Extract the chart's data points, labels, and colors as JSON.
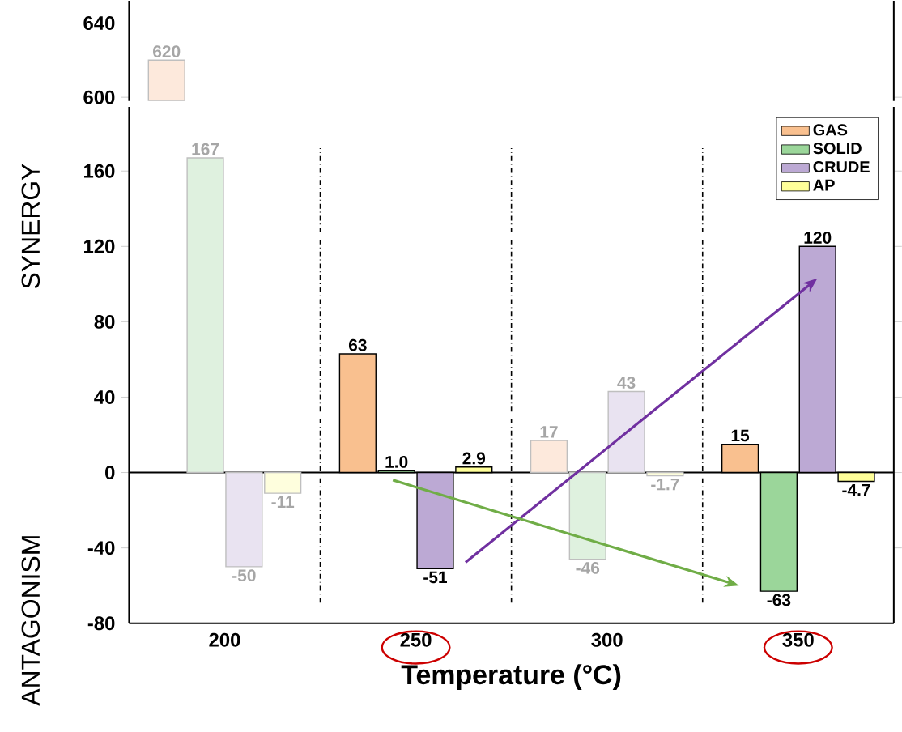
{
  "chart_data": [
    {
      "type": "bar",
      "categories": [
        "200",
        "250",
        "300",
        "350"
      ],
      "tick_labels": "y",
      "ylim": [
        598,
        652
      ],
      "yticks": [
        600,
        640
      ],
      "series": [
        {
          "color": "#f9c08f",
          "colors": [
            "#fde9dc",
            "#f9c08f",
            "#fde9dc",
            "#f9c08f"
          ],
          "values": [
            620,
            null,
            null,
            null
          ],
          "value_labels": [
            "620",
            null,
            null,
            null
          ]
        },
        {
          "color": "#9bd69a",
          "values": [
            null,
            null,
            null,
            null
          ]
        },
        {
          "color": "#bca9d4",
          "values": [
            null,
            null,
            null,
            null
          ]
        },
        {
          "color": "#ffff99",
          "values": [
            null,
            null,
            null,
            null
          ]
        }
      ]
    },
    {
      "type": "bar",
      "categories": [
        "200",
        "250",
        "300",
        "350"
      ],
      "xlabel": "Temperature (°C)",
      "ylabel": "SYNERGY",
      "annotations": [
        "ANTAGONISM"
      ],
      "ylim": [
        -80,
        194
      ],
      "yticks": [
        -80,
        -40,
        0,
        40,
        80,
        120,
        160
      ],
      "legend": "top right",
      "ref_lines": [
        {
          "axis": "y",
          "value": 0
        }
      ],
      "series": [
        {
          "name": "GAS",
          "color": "#f9c08f",
          "colors": [
            "#fde9dc",
            "#f9c08f",
            "#fde9dc",
            "#f9c08f"
          ],
          "values": [
            null,
            63,
            17,
            15
          ],
          "value_labels": [
            null,
            "63",
            "17",
            "15"
          ]
        },
        {
          "name": "SOLID",
          "color": "#9bd69a",
          "colors": [
            "#dff1df",
            "#9bd69a",
            "#dff1df",
            "#9bd69a"
          ],
          "values": [
            167,
            1.0,
            -46,
            -63
          ],
          "value_labels": [
            "167",
            "1.0",
            "-46",
            "-63"
          ]
        },
        {
          "name": "CRUDE",
          "color": "#bca9d4",
          "colors": [
            "#e9e3f1",
            "#bca9d4",
            "#e9e3f1",
            "#bca9d4"
          ],
          "values": [
            -50,
            -51,
            43,
            120
          ],
          "value_labels": [
            "-50",
            "-51",
            "43",
            "120"
          ]
        },
        {
          "name": "AP",
          "color": "#ffff99",
          "colors": [
            "#fefedd",
            "#ffff99",
            "#fefedd",
            "#ffff99"
          ],
          "values": [
            -11,
            2.9,
            -1.7,
            -4.7
          ],
          "value_labels": [
            "-11",
            "2.9",
            "-1.7",
            "-4.7"
          ]
        }
      ]
    }
  ]
}
